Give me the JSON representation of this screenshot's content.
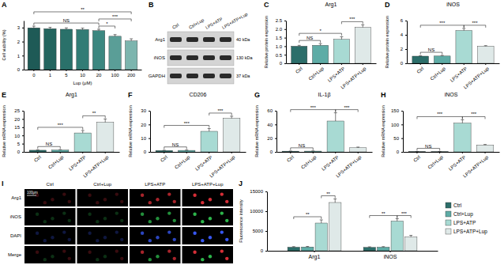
{
  "chart_data": [
    {
      "panel": "A",
      "type": "bar",
      "y_label": "Cell viability (%)",
      "x_label": "Lup (μM)",
      "categories": [
        "0",
        "1",
        "5",
        "10",
        "20",
        "100",
        "200"
      ],
      "values": [
        2.98,
        2.92,
        2.88,
        2.86,
        2.78,
        2.38,
        2.05
      ],
      "errors": [
        0.12,
        0.1,
        0.1,
        0.1,
        0.1,
        0.12,
        0.15
      ],
      "colors": [
        "#1e5a56",
        "#23655f",
        "#2a716a",
        "#327c75",
        "#3b8780",
        "#5a9e97",
        "#7cb5ae"
      ],
      "ylim": [
        0,
        3.5
      ],
      "yticks": [
        0,
        1,
        2,
        3
      ],
      "comparisons": [
        {
          "groups": [
            "0",
            "20"
          ],
          "label": "NS"
        },
        {
          "groups": [
            "20",
            "100"
          ],
          "label": "*"
        },
        {
          "groups": [
            "20",
            "200"
          ],
          "label": "***"
        },
        {
          "groups": [
            "0",
            "200"
          ],
          "label": "**"
        }
      ]
    },
    {
      "panel": "B",
      "type": "blot",
      "lanes": [
        "Ctrl",
        "Ctrl+Lup",
        "LPS+ATP",
        "LPS+ATP+Lup"
      ],
      "rows": [
        {
          "label": "Arg1",
          "size": "40 kDa"
        },
        {
          "label": "iNOS",
          "size": "130 kDa"
        },
        {
          "label": "GAPDH",
          "size": "37 kDa"
        }
      ]
    },
    {
      "panel": "C",
      "type": "bar",
      "title": "Arg1",
      "y_label": "Relative protein expression",
      "categories": [
        "Ctrl",
        "Ctrl+Lup",
        "LPS+ATP",
        "LPS+ATP+Lup"
      ],
      "values": [
        1,
        1.05,
        1.4,
        2.1
      ],
      "errors": [
        0.05,
        0.1,
        0.15,
        0.15
      ],
      "colors": [
        "#2c6e6a",
        "#5eaca6",
        "#a8dad3",
        "#dfe9e8"
      ],
      "ylim": [
        0,
        2.5
      ],
      "yticks": [
        0,
        0.5,
        {
          "value": 1,
          "label": "1.0"
        },
        1.5,
        {
          "value": 2,
          "label": "2.0"
        },
        2.5
      ],
      "comparisons": [
        {
          "groups": [
            "Ctrl",
            "Ctrl+Lup"
          ],
          "label": "NS"
        },
        {
          "groups": [
            "Ctrl",
            "LPS+ATP"
          ],
          "label": "*"
        },
        {
          "groups": [
            "LPS+ATP",
            "LPS+ATP+Lup"
          ],
          "label": "***"
        }
      ]
    },
    {
      "panel": "D",
      "type": "bar",
      "title": "iNOS",
      "y_label": "Relative protein expression",
      "categories": [
        "Ctrl",
        "Ctrl+Lup",
        "LPS+ATP",
        "LPS+ATP+Lup"
      ],
      "values": [
        1,
        1.02,
        4.6,
        2.4
      ],
      "errors": [
        0.05,
        0.08,
        0.3,
        0.08
      ],
      "colors": [
        "#2c6e6a",
        "#5eaca6",
        "#a8dad3",
        "#dfe9e8"
      ],
      "ylim": [
        0,
        6
      ],
      "yticks": [
        0,
        2,
        4,
        6
      ],
      "comparisons": [
        {
          "groups": [
            "Ctrl",
            "Ctrl+Lup"
          ],
          "label": "NS"
        },
        {
          "groups": [
            "Ctrl",
            "LPS+ATP"
          ],
          "label": "***"
        },
        {
          "groups": [
            "LPS+ATP",
            "LPS+ATP+Lup"
          ],
          "label": "***"
        }
      ]
    },
    {
      "panel": "E",
      "type": "bar",
      "title": "Arg1",
      "y_label": "Relative mRNA expression",
      "categories": [
        "Ctrl",
        "Ctrl+Lup",
        "LPS+ATP",
        "LPS+ATP+Lup"
      ],
      "values": [
        1,
        1.1,
        11.5,
        18
      ],
      "errors": [
        0.2,
        0.2,
        1.5,
        2
      ],
      "colors": [
        "#2c6e6a",
        "#5eaca6",
        "#a8dad3",
        "#dfe9e8"
      ],
      "ylim": [
        0,
        25
      ],
      "yticks": [
        0,
        5,
        10,
        15,
        20,
        25
      ],
      "comparisons": [
        {
          "groups": [
            "Ctrl",
            "Ctrl+Lup"
          ],
          "label": "NS"
        },
        {
          "groups": [
            "Ctrl",
            "LPS+ATP"
          ],
          "label": "***"
        },
        {
          "groups": [
            "LPS+ATP",
            "LPS+ATP+Lup"
          ],
          "label": "**"
        }
      ]
    },
    {
      "panel": "F",
      "type": "bar",
      "title": "CD206",
      "y_label": "Relative mRNA expression",
      "categories": [
        "Ctrl",
        "Ctrl+Lup",
        "LPS+ATP",
        "LPS+ATP+Lup"
      ],
      "values": [
        1,
        1.1,
        15,
        24.5
      ],
      "errors": [
        0.2,
        0.2,
        2,
        1.5
      ],
      "colors": [
        "#2c6e6a",
        "#5eaca6",
        "#a8dad3",
        "#dfe9e8"
      ],
      "ylim": [
        0,
        30
      ],
      "yticks": [
        0,
        10,
        20,
        30
      ],
      "comparisons": [
        {
          "groups": [
            "Ctrl",
            "Ctrl+Lup"
          ],
          "label": "NS"
        },
        {
          "groups": [
            "Ctrl",
            "LPS+ATP"
          ],
          "label": "***"
        },
        {
          "groups": [
            "LPS+ATP",
            "LPS+ATP+Lup"
          ],
          "label": "***"
        }
      ]
    },
    {
      "panel": "G",
      "type": "bar",
      "title": "IL-1β",
      "y_label": "Relative mRNA expression",
      "categories": [
        "Ctrl",
        "Ctrl+Lup",
        "LPS+ATP",
        "LPS+ATP+Lup"
      ],
      "values": [
        1,
        1.1,
        45,
        6
      ],
      "errors": [
        0.2,
        0.2,
        12,
        1
      ],
      "colors": [
        "#2c6e6a",
        "#5eaca6",
        "#a8dad3",
        "#dfe9e8"
      ],
      "ylim": [
        0,
        60
      ],
      "yticks": [
        0,
        20,
        40,
        60
      ],
      "comparisons": [
        {
          "groups": [
            "Ctrl",
            "Ctrl+Lup"
          ],
          "label": "NS"
        },
        {
          "groups": [
            "Ctrl",
            "LPS+ATP"
          ],
          "label": "***"
        },
        {
          "groups": [
            "LPS+ATP",
            "LPS+ATP+Lup"
          ],
          "label": "***"
        }
      ]
    },
    {
      "panel": "H",
      "type": "bar",
      "title": "iNOS",
      "y_label": "Relative mRNA expression",
      "categories": [
        "Ctrl",
        "Ctrl+Lup",
        "LPS+ATP",
        "LPS+ATP+Lup"
      ],
      "values": [
        1,
        1,
        105,
        25
      ],
      "errors": [
        0.2,
        0.2,
        12,
        2
      ],
      "colors": [
        "#2c6e6a",
        "#5eaca6",
        "#a8dad3",
        "#dfe9e8"
      ],
      "ylim": [
        0,
        150
      ],
      "yticks": [
        0,
        50,
        100,
        150
      ],
      "comparisons": [
        {
          "groups": [
            "Ctrl",
            "Ctrl+Lup"
          ],
          "label": "NS"
        },
        {
          "groups": [
            "Ctrl",
            "LPS+ATP"
          ],
          "label": "***"
        },
        {
          "groups": [
            "LPS+ATP",
            "LPS+ATP+Lup"
          ],
          "label": "***"
        }
      ]
    },
    {
      "panel": "I",
      "type": "image_grid",
      "columns": [
        "Ctrl",
        "Ctrl+Lup",
        "LPS+ATP",
        "LPS+ATP+Lup"
      ],
      "rows": [
        "Arg1",
        "iNOS",
        "DAPI",
        "Merge"
      ],
      "scale_bar": "100μm"
    },
    {
      "panel": "J",
      "type": "grouped_bar",
      "y_label": "Fluorescence intensity",
      "categories": [
        "Arg1",
        "iNOS"
      ],
      "series": [
        {
          "name": "Ctrl",
          "color": "#2c6e6a",
          "values": [
            900,
            850
          ],
          "errors": [
            150,
            150
          ]
        },
        {
          "name": "Ctrl+Lup",
          "color": "#5eaca6",
          "values": [
            950,
            900
          ],
          "errors": [
            150,
            150
          ]
        },
        {
          "name": "LPS+ATP",
          "color": "#a8dad3",
          "values": [
            7000,
            7500
          ],
          "errors": [
            800,
            600
          ]
        },
        {
          "name": "LPS+ATP+Lup",
          "color": "#dfe9e8",
          "values": [
            12200,
            3500
          ],
          "errors": [
            900,
            400
          ]
        }
      ],
      "ylim": [
        0,
        15000
      ],
      "yticks": [
        0,
        5000,
        10000,
        15000
      ],
      "legend": "right",
      "comparisons": [
        {
          "category": "Arg1",
          "groups": [
            "Ctrl",
            "LPS+ATP"
          ],
          "label": "**"
        },
        {
          "category": "Arg1",
          "groups": [
            "LPS+ATP",
            "LPS+ATP+Lup"
          ],
          "label": "**"
        },
        {
          "category": "iNOS",
          "groups": [
            "Ctrl",
            "LPS+ATP"
          ],
          "label": "**"
        },
        {
          "category": "iNOS",
          "groups": [
            "LPS+ATP",
            "LPS+ATP+Lup"
          ],
          "label": "***"
        }
      ]
    }
  ]
}
